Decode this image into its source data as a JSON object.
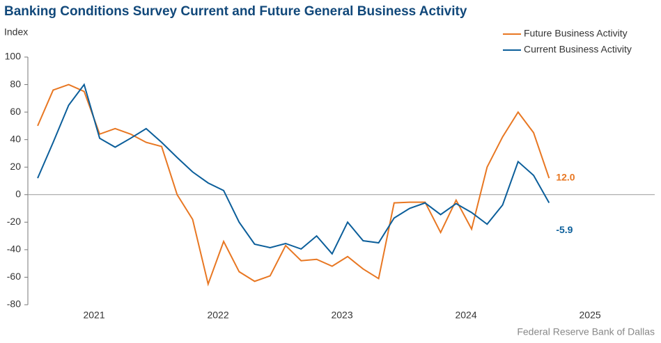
{
  "chart_data": {
    "type": "line",
    "title": "Banking Conditions Survey Current and Future General Business Activity",
    "y_label": "Index",
    "source": "Federal Reserve Bank of Dallas",
    "x": [
      2020.545,
      2020.67,
      2020.795,
      2020.92,
      2021.045,
      2021.17,
      2021.295,
      2021.42,
      2021.545,
      2021.67,
      2021.795,
      2021.92,
      2022.045,
      2022.17,
      2022.295,
      2022.42,
      2022.545,
      2022.67,
      2022.795,
      2022.92,
      2023.045,
      2023.17,
      2023.295,
      2023.42,
      2023.545,
      2023.67,
      2023.795,
      2023.92,
      2024.045,
      2024.17,
      2024.295,
      2024.42,
      2024.545,
      2024.67
    ],
    "xlim": [
      2020.466,
      2025.522
    ],
    "xticks": [
      2021,
      2022,
      2023,
      2024,
      2025
    ],
    "ylim": [
      -80,
      100
    ],
    "yticks": [
      -80,
      -60,
      -40,
      -20,
      0,
      20,
      40,
      60,
      80,
      100
    ],
    "legend": "top-right",
    "series": [
      {
        "name": "Future Business Activity",
        "color": "#e87722",
        "values": [
          50,
          76,
          80,
          75,
          44,
          48,
          44,
          38,
          35,
          0,
          -18,
          -65,
          -34,
          -56,
          -63,
          -59,
          -37,
          -48,
          -47,
          -52,
          -45,
          -54,
          -61,
          -6,
          -5.5,
          -5.5,
          -27.5,
          -4,
          -25,
          20,
          42,
          60,
          45,
          12
        ],
        "value_labels": [
          null,
          null,
          null,
          null,
          null,
          null,
          null,
          null,
          null,
          null,
          null,
          null,
          null,
          null,
          null,
          null,
          null,
          null,
          null,
          null,
          null,
          null,
          null,
          null,
          null,
          null,
          null,
          null,
          null,
          null,
          null,
          null,
          null,
          "12.0"
        ]
      },
      {
        "name": "Current Business Activity",
        "color": "#0b5e9a",
        "values": [
          12,
          38,
          65,
          80,
          41,
          34.5,
          41,
          48,
          38,
          27,
          16.5,
          8.5,
          3,
          -20,
          -36,
          -38.5,
          -35.5,
          -39.5,
          -30,
          -43,
          -20,
          -33.5,
          -35,
          -17,
          -10,
          -6,
          -14.5,
          -6.5,
          -13,
          -21.5,
          -7.5,
          24,
          14,
          -5.9
        ],
        "value_labels": [
          null,
          null,
          null,
          null,
          null,
          null,
          null,
          null,
          null,
          null,
          null,
          null,
          null,
          null,
          null,
          null,
          null,
          null,
          null,
          null,
          null,
          null,
          null,
          null,
          null,
          null,
          null,
          null,
          null,
          null,
          null,
          null,
          null,
          "-5.9"
        ]
      }
    ]
  }
}
